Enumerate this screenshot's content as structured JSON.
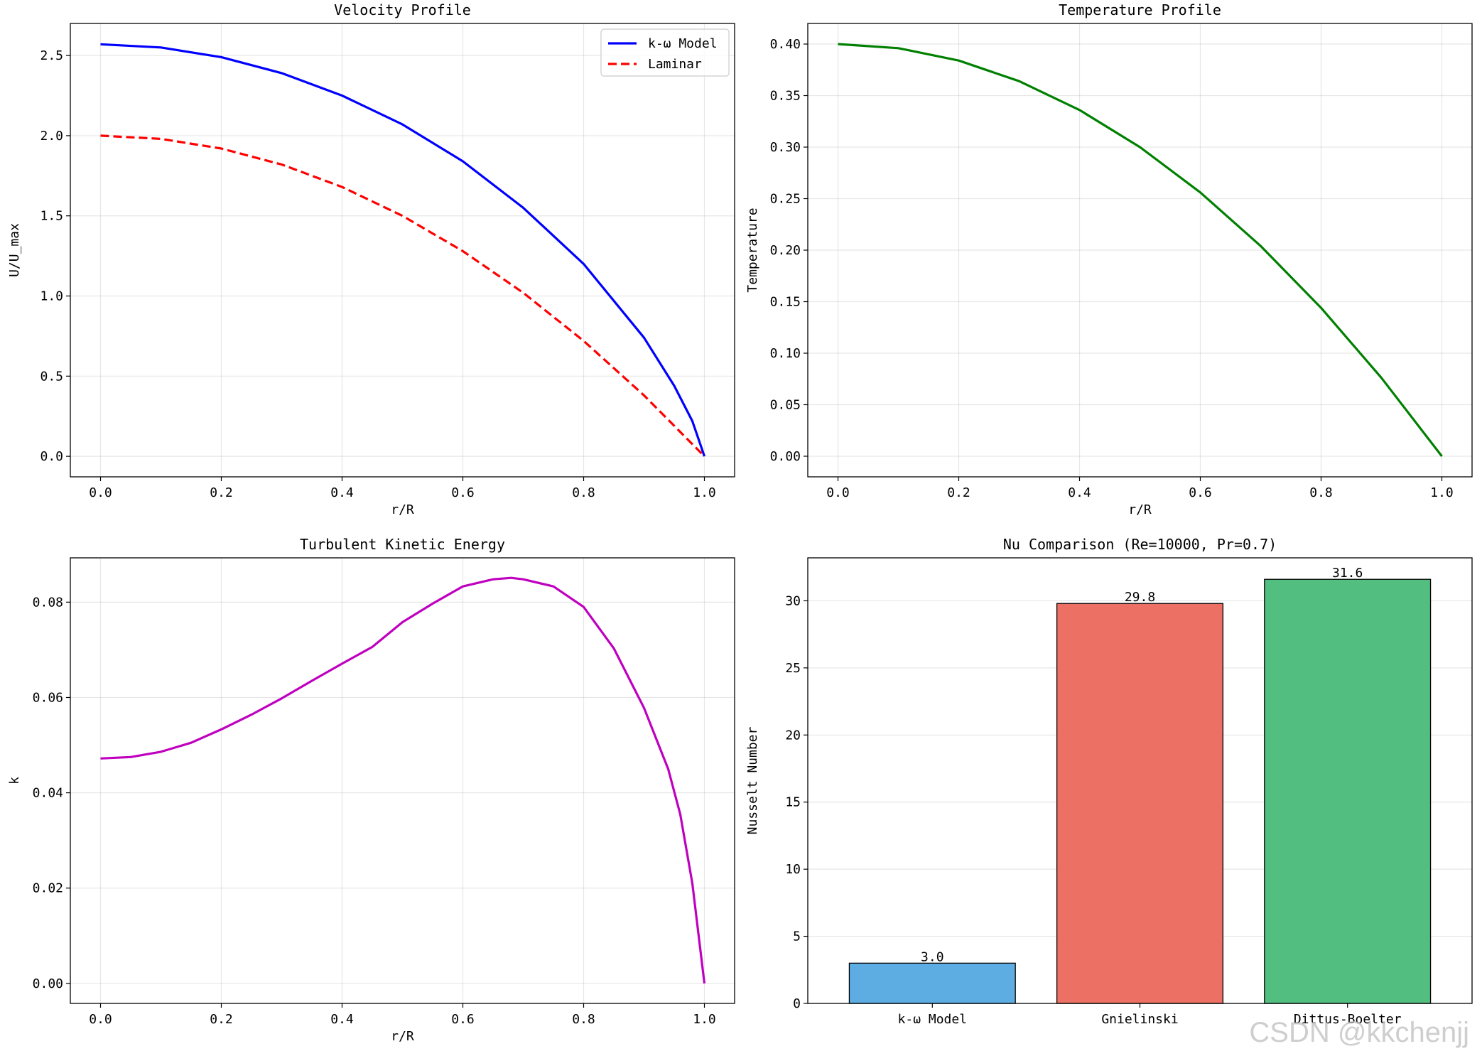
{
  "watermark": "CSDN @kkchenjj",
  "chart_data": [
    {
      "type": "line",
      "title": "Velocity Profile",
      "xlabel": "r/R",
      "ylabel": "U/U_max",
      "xlim": [
        -0.05,
        1.05
      ],
      "ylim": [
        -0.128,
        2.7
      ],
      "xticks": [
        "0.0",
        "0.2",
        "0.4",
        "0.6",
        "0.8",
        "1.0"
      ],
      "yticks": [
        "0.0",
        "0.5",
        "1.0",
        "1.5",
        "2.0",
        "2.5"
      ],
      "grid": true,
      "legend": "top-right",
      "series": [
        {
          "name": "k-ω Model",
          "color": "#0000ff",
          "dash": "solid",
          "x": [
            0.0,
            0.1,
            0.2,
            0.3,
            0.4,
            0.5,
            0.6,
            0.7,
            0.8,
            0.9,
            0.95,
            0.98,
            1.0
          ],
          "y": [
            2.57,
            2.55,
            2.49,
            2.39,
            2.25,
            2.07,
            1.84,
            1.55,
            1.2,
            0.74,
            0.44,
            0.22,
            0.0
          ]
        },
        {
          "name": "Laminar",
          "color": "#ff0000",
          "dash": "dashed",
          "x": [
            0.0,
            0.1,
            0.2,
            0.3,
            0.4,
            0.5,
            0.6,
            0.7,
            0.8,
            0.9,
            1.0
          ],
          "y": [
            2.0,
            1.98,
            1.92,
            1.82,
            1.68,
            1.5,
            1.28,
            1.02,
            0.72,
            0.38,
            0.0
          ]
        }
      ]
    },
    {
      "type": "line",
      "title": "Temperature Profile",
      "xlabel": "r/R",
      "ylabel": "Temperature",
      "xlim": [
        -0.05,
        1.05
      ],
      "ylim": [
        -0.02,
        0.42
      ],
      "xticks": [
        "0.0",
        "0.2",
        "0.4",
        "0.6",
        "0.8",
        "1.0"
      ],
      "yticks": [
        "0.00",
        "0.05",
        "0.10",
        "0.15",
        "0.20",
        "0.25",
        "0.30",
        "0.35",
        "0.40"
      ],
      "grid": true,
      "series": [
        {
          "color": "#008000",
          "dash": "solid",
          "x": [
            0.0,
            0.1,
            0.2,
            0.3,
            0.4,
            0.5,
            0.6,
            0.7,
            0.8,
            0.9,
            1.0
          ],
          "y": [
            0.4,
            0.396,
            0.384,
            0.364,
            0.336,
            0.3,
            0.256,
            0.204,
            0.144,
            0.076,
            0.0
          ]
        }
      ]
    },
    {
      "type": "line",
      "title": "Turbulent Kinetic Energy",
      "xlabel": "r/R",
      "ylabel": "k",
      "xlim": [
        -0.05,
        1.05
      ],
      "ylim": [
        -0.0042,
        0.0893
      ],
      "xticks": [
        "0.0",
        "0.2",
        "0.4",
        "0.6",
        "0.8",
        "1.0"
      ],
      "yticks": [
        "0.00",
        "0.02",
        "0.04",
        "0.06",
        "0.08"
      ],
      "grid": true,
      "series": [
        {
          "color": "#bf00bf",
          "dash": "solid",
          "x": [
            0.0,
            0.05,
            0.1,
            0.15,
            0.2,
            0.25,
            0.3,
            0.35,
            0.4,
            0.45,
            0.5,
            0.55,
            0.6,
            0.65,
            0.68,
            0.7,
            0.75,
            0.8,
            0.85,
            0.9,
            0.94,
            0.96,
            0.98,
            1.0
          ],
          "y": [
            0.0472,
            0.0475,
            0.0486,
            0.0505,
            0.0533,
            0.0564,
            0.0598,
            0.0635,
            0.0671,
            0.0706,
            0.0758,
            0.0797,
            0.0833,
            0.0848,
            0.0851,
            0.0848,
            0.0833,
            0.079,
            0.0703,
            0.0578,
            0.045,
            0.0355,
            0.021,
            0.0
          ]
        }
      ]
    },
    {
      "type": "bar",
      "title": "Nu Comparison (Re=10000, Pr=0.7)",
      "xlabel": "",
      "ylabel": "Nusselt Number",
      "categories": [
        "k-ω Model",
        "Gnielinski",
        "Dittus-Boelter"
      ],
      "values": [
        3.0,
        29.8,
        31.6
      ],
      "value_labels": [
        "3.0",
        "29.8",
        "31.6"
      ],
      "colors": [
        "#5dade2",
        "#ec7063",
        "#52be80"
      ],
      "ylim": [
        0,
        33.2
      ],
      "yticks": [
        "0",
        "5",
        "10",
        "15",
        "20",
        "25",
        "30"
      ],
      "grid": true
    }
  ]
}
